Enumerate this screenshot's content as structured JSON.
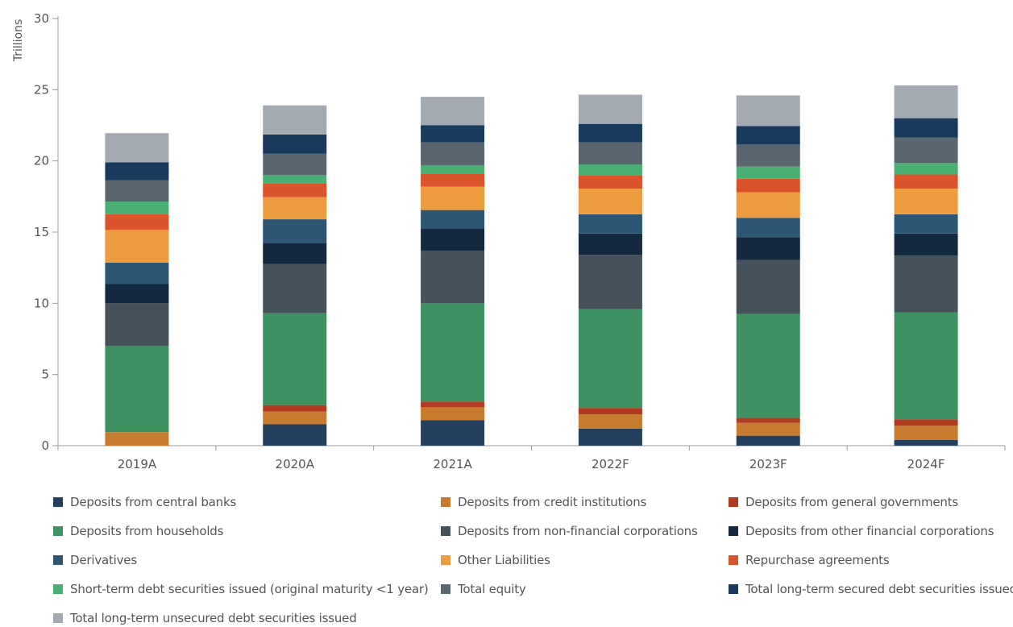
{
  "chart_data": {
    "type": "bar",
    "stacked": true,
    "ylabel": "Trillions",
    "ylim": [
      0,
      30
    ],
    "yticks": [
      "0",
      "5",
      "10",
      "15",
      "20",
      "25",
      "30"
    ],
    "categories": [
      "2019A",
      "2020A",
      "2021A",
      "2022F",
      "2023F",
      "2024F"
    ],
    "grid": false,
    "legend_position": "bottom",
    "series": [
      {
        "name": "Deposits from central banks",
        "color": "#24405E",
        "values": [
          0.0,
          1.5,
          1.8,
          1.2,
          0.7,
          0.4
        ]
      },
      {
        "name": "Deposits from credit institutions",
        "color": "#C77B2F",
        "values": [
          0.95,
          0.9,
          0.9,
          1.0,
          0.9,
          1.0
        ]
      },
      {
        "name": "Deposits from general governments",
        "color": "#B23A21",
        "values": [
          0.0,
          0.45,
          0.4,
          0.45,
          0.35,
          0.45
        ]
      },
      {
        "name": "Deposits from households",
        "color": "#3E9262",
        "values": [
          6.05,
          6.45,
          6.9,
          6.95,
          7.3,
          7.5
        ]
      },
      {
        "name": "Deposits from non-financial corporations",
        "color": "#45525C",
        "values": [
          3.0,
          3.45,
          3.7,
          3.8,
          3.8,
          4.0
        ]
      },
      {
        "name": "Deposits from other financial corporations",
        "color": "#14293F",
        "values": [
          1.35,
          1.5,
          1.55,
          1.5,
          1.6,
          1.55
        ]
      },
      {
        "name": "Derivatives",
        "color": "#2D5675",
        "values": [
          1.5,
          1.65,
          1.3,
          1.35,
          1.35,
          1.35
        ]
      },
      {
        "name": "Other Liabilities",
        "color": "#ED9B3F",
        "values": [
          2.3,
          1.55,
          1.65,
          1.8,
          1.8,
          1.8
        ]
      },
      {
        "name": "Repurchase agreements",
        "color": "#DA532A",
        "values": [
          1.1,
          0.95,
          0.9,
          0.95,
          0.95,
          1.0
        ]
      },
      {
        "name": "Short-term debt securities issued (original maturity <1 year)",
        "color": "#4AAF73",
        "values": [
          0.9,
          0.6,
          0.6,
          0.75,
          0.85,
          0.8
        ]
      },
      {
        "name": "Total equity",
        "color": "#59666F",
        "values": [
          1.5,
          1.5,
          1.6,
          1.55,
          1.55,
          1.8
        ]
      },
      {
        "name": "Total long-term secured debt securities issued",
        "color": "#193A5C",
        "values": [
          1.25,
          1.35,
          1.2,
          1.3,
          1.3,
          1.35
        ]
      },
      {
        "name": "Total long-term unsecured debt securities issued",
        "color": "#A3AAB1",
        "values": [
          2.05,
          2.05,
          2.0,
          2.05,
          2.15,
          2.3
        ]
      }
    ]
  }
}
